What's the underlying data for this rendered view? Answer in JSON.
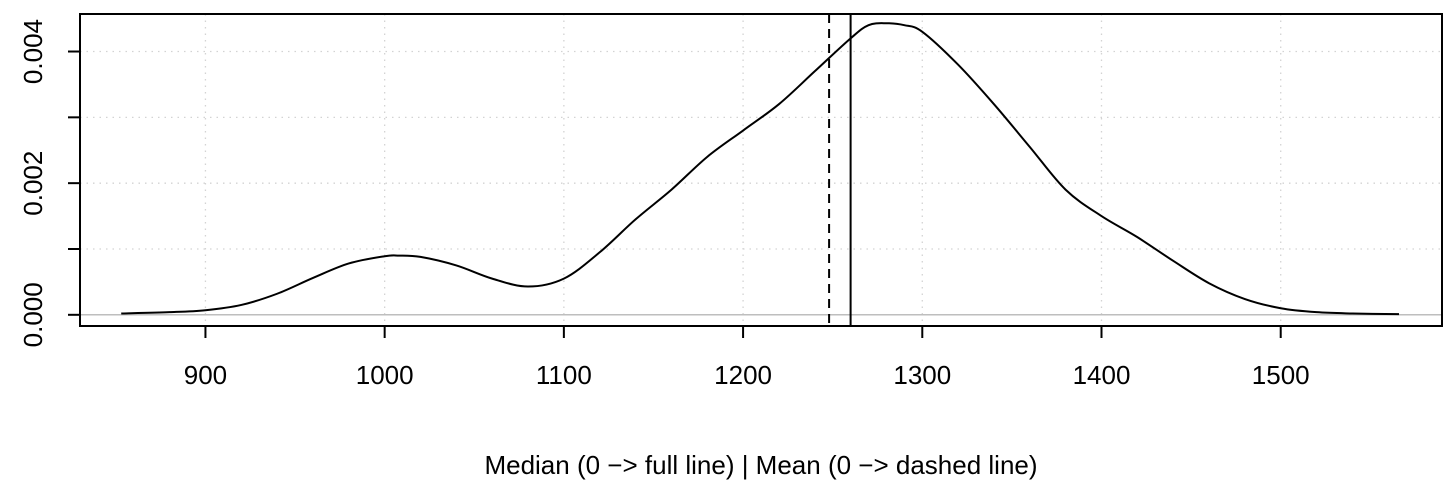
{
  "chart_data": {
    "type": "line",
    "title": "",
    "xlabel": "Median (0 −> full line) | Mean (0 −> dashed line)",
    "ylabel": "",
    "xlim": [
      830,
      1590
    ],
    "ylim": [
      -0.00017,
      0.00457
    ],
    "xticks": [
      900,
      1000,
      1100,
      1200,
      1300,
      1400,
      1500
    ],
    "xtick_labels": [
      "900",
      "1000",
      "1100",
      "1200",
      "1300",
      "1400",
      "1500"
    ],
    "yticks": [
      0,
      0.001,
      0.002,
      0.003,
      0.004
    ],
    "ytick_labels": [
      "0.000",
      "",
      "0.002",
      "",
      "0.004"
    ],
    "grid": true,
    "series": [
      {
        "x": [
          853,
          880,
          900,
          920,
          940,
          960,
          980,
          1000,
          1008,
          1020,
          1040,
          1060,
          1080,
          1100,
          1120,
          1140,
          1160,
          1180,
          1200,
          1220,
          1240,
          1260,
          1270,
          1280,
          1290,
          1300,
          1320,
          1340,
          1360,
          1380,
          1400,
          1420,
          1440,
          1460,
          1480,
          1500,
          1520,
          1540,
          1566
        ],
        "y": [
          2e-05,
          4e-05,
          7e-05,
          0.00015,
          0.00032,
          0.00056,
          0.00078,
          0.00089,
          0.0009,
          0.00088,
          0.00075,
          0.00055,
          0.00043,
          0.00055,
          0.00095,
          0.00145,
          0.0019,
          0.0024,
          0.0028,
          0.0032,
          0.0037,
          0.0042,
          0.0044,
          0.00443,
          0.0044,
          0.0043,
          0.0038,
          0.0032,
          0.00255,
          0.0019,
          0.0015,
          0.00118,
          0.00082,
          0.00048,
          0.00024,
          0.0001,
          4e-05,
          2e-05,
          1e-05
        ]
      }
    ],
    "vlines": [
      {
        "label": "Median",
        "x": 1260,
        "style": "solid"
      },
      {
        "label": "Mean",
        "x": 1248,
        "style": "dashed"
      }
    ],
    "hline": {
      "y": 0,
      "color": "#bebebe"
    },
    "colors": {
      "line": "#000000",
      "grid": "#d3d3d3",
      "zero_line": "#bebebe"
    }
  }
}
